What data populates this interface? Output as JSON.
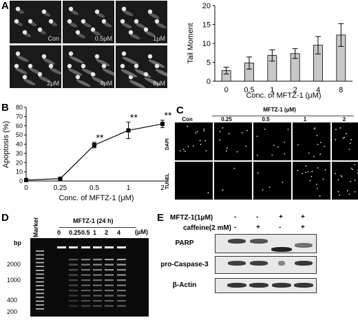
{
  "panels": {
    "a": "A",
    "b": "B",
    "c": "C",
    "d": "D",
    "e": "E"
  },
  "panel_a": {
    "comet_labels": [
      "Con",
      "0.5μM",
      "1μM",
      "2μM",
      "4μM",
      "8μM"
    ]
  },
  "panel_b": {
    "x_ticks": [
      "0",
      "0.25",
      "0.5",
      "1",
      "2"
    ],
    "sig": "**"
  },
  "panel_c": {
    "title": "MFTZ-1 (μM)",
    "columns": [
      "Con",
      "0.25",
      "0.5",
      "1",
      "2"
    ],
    "rows": [
      "DAPI",
      "TUNEL"
    ]
  },
  "panel_d": {
    "title": "MFTZ-1 (24 h)",
    "marker": "Marker",
    "lane_labels": [
      "0",
      "0.25",
      "0.5",
      "1",
      "2",
      "4"
    ],
    "unit": "(μM)",
    "bp": "bp",
    "bp_marks": [
      "2000",
      "1000",
      "400",
      "200"
    ]
  },
  "panel_e": {
    "row1_label": "MFTZ-1(1μM)",
    "row2_label": "caffeine(2 mM)",
    "row1_signs": [
      "-",
      "-",
      "+",
      "+"
    ],
    "row2_signs": [
      "-",
      "+",
      "-",
      "+"
    ],
    "bands": [
      "PARP",
      "pro-Caspase-3",
      "β-Actin"
    ]
  },
  "chart_data": [
    {
      "type": "bar",
      "panel": "A",
      "categories": [
        "0",
        "0.5",
        "1",
        "2",
        "4",
        "8"
      ],
      "values": [
        2.8,
        4.8,
        6.8,
        7.3,
        9.5,
        12.2
      ],
      "errors": [
        0.9,
        1.6,
        1.5,
        1.3,
        2.3,
        3.0
      ],
      "xlabel": "Conc. of MFTZ-1 (μM)",
      "ylabel": "Tail Moment",
      "ylim": [
        0,
        20
      ],
      "yticks": [
        0,
        5,
        10,
        15,
        20
      ]
    },
    {
      "type": "line",
      "panel": "B",
      "x": [
        "0",
        "0.25",
        "0.5",
        "1",
        "2"
      ],
      "values": [
        1.0,
        2.5,
        39.0,
        55.0,
        62.0
      ],
      "errors": [
        0.8,
        1.0,
        3.0,
        9.0,
        4.0
      ],
      "xlabel": "Conc. of MFTZ-1 (μM)",
      "ylabel": "Apoptosis (%)",
      "ylim": [
        0,
        80
      ],
      "yticks": [
        0,
        10,
        20,
        30,
        40,
        50,
        60,
        70,
        80
      ]
    }
  ]
}
